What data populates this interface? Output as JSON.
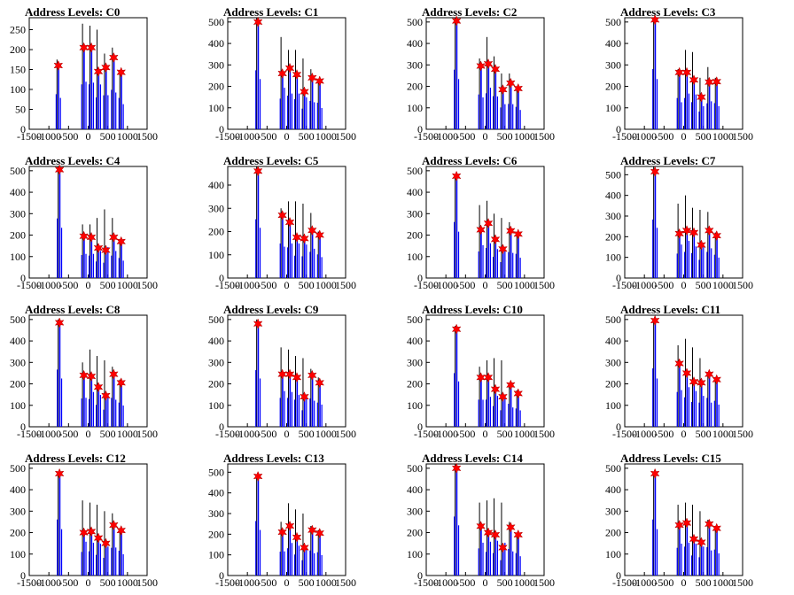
{
  "colors": {
    "bar": "#0000ff",
    "spike": "#000000",
    "marker": "#ff0000",
    "frame": "#000000"
  },
  "marker_icon": "star-marker-icon",
  "x_ticks": [
    -1500,
    -1000,
    -500,
    0,
    500,
    1000,
    1500
  ],
  "chart_data": [
    {
      "type": "bar",
      "title": "Address Levels: C0",
      "xlim": [
        -1500,
        1500
      ],
      "ylim": [
        0,
        280
      ],
      "yticks": [
        0,
        50,
        100,
        150,
        200,
        250
      ],
      "peaks": [
        {
          "x": -760,
          "h": 175,
          "marker": 160
        },
        {
          "x": -110,
          "h": 265,
          "marker": 205
        },
        {
          "x": 80,
          "h": 260,
          "marker": 205
        },
        {
          "x": 260,
          "h": 250,
          "marker": 145
        },
        {
          "x": 450,
          "h": 190,
          "marker": 155
        },
        {
          "x": 650,
          "h": 205,
          "marker": 180
        },
        {
          "x": 840,
          "h": 140,
          "marker": 143
        }
      ]
    },
    {
      "type": "bar",
      "title": "Address Levels: C1",
      "xlim": [
        -1500,
        1500
      ],
      "ylim": [
        0,
        520
      ],
      "yticks": [
        0,
        100,
        200,
        300,
        400,
        500
      ],
      "peaks": [
        {
          "x": -730,
          "h": 520,
          "marker": 500
        },
        {
          "x": -110,
          "h": 430,
          "marker": 260
        },
        {
          "x": 80,
          "h": 370,
          "marker": 285
        },
        {
          "x": 260,
          "h": 370,
          "marker": 255
        },
        {
          "x": 450,
          "h": 330,
          "marker": 175
        },
        {
          "x": 650,
          "h": 280,
          "marker": 240
        },
        {
          "x": 840,
          "h": 220,
          "marker": 225
        }
      ]
    },
    {
      "type": "bar",
      "title": "Address Levels: C2",
      "xlim": [
        -1500,
        1500
      ],
      "ylim": [
        0,
        520
      ],
      "yticks": [
        0,
        100,
        200,
        300,
        400,
        500
      ],
      "peaks": [
        {
          "x": -730,
          "h": 520,
          "marker": 505
        },
        {
          "x": -110,
          "h": 330,
          "marker": 295
        },
        {
          "x": 80,
          "h": 430,
          "marker": 305
        },
        {
          "x": 260,
          "h": 340,
          "marker": 280
        },
        {
          "x": 450,
          "h": 260,
          "marker": 185
        },
        {
          "x": 650,
          "h": 260,
          "marker": 215
        },
        {
          "x": 840,
          "h": 200,
          "marker": 190
        }
      ]
    },
    {
      "type": "bar",
      "title": "Address Levels: C3",
      "xlim": [
        -1500,
        1500
      ],
      "ylim": [
        0,
        520
      ],
      "yticks": [
        0,
        100,
        200,
        300,
        400,
        500
      ],
      "peaks": [
        {
          "x": -730,
          "h": 520,
          "marker": 510
        },
        {
          "x": -110,
          "h": 280,
          "marker": 265
        },
        {
          "x": 80,
          "h": 370,
          "marker": 265
        },
        {
          "x": 260,
          "h": 360,
          "marker": 230
        },
        {
          "x": 450,
          "h": 240,
          "marker": 150
        },
        {
          "x": 650,
          "h": 290,
          "marker": 220
        },
        {
          "x": 840,
          "h": 240,
          "marker": 222
        }
      ]
    },
    {
      "type": "bar",
      "title": "Address Levels: C4",
      "xlim": [
        -1500,
        1500
      ],
      "ylim": [
        0,
        520
      ],
      "yticks": [
        0,
        100,
        200,
        300,
        400,
        500
      ],
      "peaks": [
        {
          "x": -730,
          "h": 520,
          "marker": 505
        },
        {
          "x": -110,
          "h": 250,
          "marker": 195
        },
        {
          "x": 80,
          "h": 250,
          "marker": 190
        },
        {
          "x": 260,
          "h": 280,
          "marker": 140
        },
        {
          "x": 450,
          "h": 320,
          "marker": 130
        },
        {
          "x": 650,
          "h": 280,
          "marker": 190
        },
        {
          "x": 840,
          "h": 180,
          "marker": 170
        }
      ]
    },
    {
      "type": "bar",
      "title": "Address Levels: C5",
      "xlim": [
        -1500,
        1500
      ],
      "ylim": [
        0,
        480
      ],
      "yticks": [
        0,
        100,
        200,
        300,
        400
      ],
      "peaks": [
        {
          "x": -730,
          "h": 480,
          "marker": 460
        },
        {
          "x": -110,
          "h": 300,
          "marker": 270
        },
        {
          "x": 80,
          "h": 330,
          "marker": 240
        },
        {
          "x": 260,
          "h": 330,
          "marker": 175
        },
        {
          "x": 450,
          "h": 320,
          "marker": 170
        },
        {
          "x": 650,
          "h": 280,
          "marker": 205
        },
        {
          "x": 840,
          "h": 200,
          "marker": 185
        }
      ]
    },
    {
      "type": "bar",
      "title": "Address Levels: C6",
      "xlim": [
        -1500,
        1500
      ],
      "ylim": [
        0,
        520
      ],
      "yticks": [
        0,
        100,
        200,
        300,
        400,
        500
      ],
      "peaks": [
        {
          "x": -730,
          "h": 480,
          "marker": 475
        },
        {
          "x": -110,
          "h": 340,
          "marker": 225
        },
        {
          "x": 80,
          "h": 360,
          "marker": 255
        },
        {
          "x": 260,
          "h": 300,
          "marker": 180
        },
        {
          "x": 450,
          "h": 280,
          "marker": 135
        },
        {
          "x": 650,
          "h": 260,
          "marker": 220
        },
        {
          "x": 840,
          "h": 210,
          "marker": 205
        }
      ]
    },
    {
      "type": "bar",
      "title": "Address Levels: C7",
      "xlim": [
        -1500,
        1500
      ],
      "ylim": [
        0,
        540
      ],
      "yticks": [
        0,
        100,
        200,
        300,
        400,
        500
      ],
      "peaks": [
        {
          "x": -730,
          "h": 540,
          "marker": 515
        },
        {
          "x": -110,
          "h": 360,
          "marker": 215
        },
        {
          "x": 80,
          "h": 400,
          "marker": 230
        },
        {
          "x": 260,
          "h": 340,
          "marker": 220
        },
        {
          "x": 450,
          "h": 330,
          "marker": 160
        },
        {
          "x": 650,
          "h": 320,
          "marker": 230
        },
        {
          "x": 840,
          "h": 220,
          "marker": 205
        }
      ]
    },
    {
      "type": "bar",
      "title": "Address Levels: C8",
      "xlim": [
        -1500,
        1500
      ],
      "ylim": [
        0,
        520
      ],
      "yticks": [
        0,
        100,
        200,
        300,
        400,
        500
      ],
      "peaks": [
        {
          "x": -730,
          "h": 500,
          "marker": 485
        },
        {
          "x": -110,
          "h": 300,
          "marker": 240
        },
        {
          "x": 80,
          "h": 360,
          "marker": 235
        },
        {
          "x": 260,
          "h": 330,
          "marker": 185
        },
        {
          "x": 450,
          "h": 310,
          "marker": 145
        },
        {
          "x": 650,
          "h": 280,
          "marker": 245
        },
        {
          "x": 840,
          "h": 220,
          "marker": 205
        }
      ]
    },
    {
      "type": "bar",
      "title": "Address Levels: C9",
      "xlim": [
        -1500,
        1500
      ],
      "ylim": [
        0,
        520
      ],
      "yticks": [
        0,
        100,
        200,
        300,
        400,
        500
      ],
      "peaks": [
        {
          "x": -730,
          "h": 500,
          "marker": 480
        },
        {
          "x": -110,
          "h": 370,
          "marker": 245
        },
        {
          "x": 80,
          "h": 360,
          "marker": 245
        },
        {
          "x": 260,
          "h": 330,
          "marker": 230
        },
        {
          "x": 450,
          "h": 320,
          "marker": 140
        },
        {
          "x": 650,
          "h": 270,
          "marker": 240
        },
        {
          "x": 840,
          "h": 230,
          "marker": 205
        }
      ]
    },
    {
      "type": "bar",
      "title": "Address Levels: C10",
      "xlim": [
        -1500,
        1500
      ],
      "ylim": [
        0,
        520
      ],
      "yticks": [
        0,
        100,
        200,
        300,
        400,
        500
      ],
      "peaks": [
        {
          "x": -730,
          "h": 470,
          "marker": 455
        },
        {
          "x": -110,
          "h": 280,
          "marker": 230
        },
        {
          "x": 80,
          "h": 310,
          "marker": 230
        },
        {
          "x": 260,
          "h": 320,
          "marker": 175
        },
        {
          "x": 450,
          "h": 310,
          "marker": 140
        },
        {
          "x": 650,
          "h": 200,
          "marker": 195
        },
        {
          "x": 840,
          "h": 170,
          "marker": 155
        }
      ]
    },
    {
      "type": "bar",
      "title": "Address Levels: C11",
      "xlim": [
        -1500,
        1500
      ],
      "ylim": [
        0,
        520
      ],
      "yticks": [
        0,
        100,
        200,
        300,
        400,
        500
      ],
      "peaks": [
        {
          "x": -730,
          "h": 500,
          "marker": 495
        },
        {
          "x": -110,
          "h": 380,
          "marker": 295
        },
        {
          "x": 80,
          "h": 410,
          "marker": 250
        },
        {
          "x": 260,
          "h": 370,
          "marker": 210
        },
        {
          "x": 450,
          "h": 320,
          "marker": 205
        },
        {
          "x": 650,
          "h": 250,
          "marker": 245
        },
        {
          "x": 840,
          "h": 230,
          "marker": 220
        }
      ]
    },
    {
      "type": "bar",
      "title": "Address Levels: C12",
      "xlim": [
        -1500,
        1500
      ],
      "ylim": [
        0,
        520
      ],
      "yticks": [
        0,
        100,
        200,
        300,
        400,
        500
      ],
      "peaks": [
        {
          "x": -730,
          "h": 480,
          "marker": 475
        },
        {
          "x": -110,
          "h": 350,
          "marker": 200
        },
        {
          "x": 80,
          "h": 340,
          "marker": 205
        },
        {
          "x": 260,
          "h": 330,
          "marker": 175
        },
        {
          "x": 450,
          "h": 300,
          "marker": 150
        },
        {
          "x": 650,
          "h": 290,
          "marker": 235
        },
        {
          "x": 840,
          "h": 220,
          "marker": 210
        }
      ]
    },
    {
      "type": "bar",
      "title": "Address Levels: C13",
      "xlim": [
        -1500,
        1500
      ],
      "ylim": [
        0,
        540
      ],
      "yticks": [
        0,
        100,
        200,
        300,
        400,
        500
      ],
      "peaks": [
        {
          "x": -730,
          "h": 490,
          "marker": 480
        },
        {
          "x": -110,
          "h": 260,
          "marker": 210
        },
        {
          "x": 80,
          "h": 350,
          "marker": 240
        },
        {
          "x": 260,
          "h": 320,
          "marker": 185
        },
        {
          "x": 450,
          "h": 300,
          "marker": 135
        },
        {
          "x": 650,
          "h": 240,
          "marker": 220
        },
        {
          "x": 840,
          "h": 220,
          "marker": 205
        }
      ]
    },
    {
      "type": "bar",
      "title": "Address Levels: C14",
      "xlim": [
        -1500,
        1500
      ],
      "ylim": [
        0,
        520
      ],
      "yticks": [
        0,
        100,
        200,
        300,
        400,
        500
      ],
      "peaks": [
        {
          "x": -730,
          "h": 520,
          "marker": 500
        },
        {
          "x": -110,
          "h": 340,
          "marker": 230
        },
        {
          "x": 80,
          "h": 350,
          "marker": 200
        },
        {
          "x": 260,
          "h": 360,
          "marker": 190
        },
        {
          "x": 450,
          "h": 340,
          "marker": 130
        },
        {
          "x": 650,
          "h": 250,
          "marker": 225
        },
        {
          "x": 840,
          "h": 200,
          "marker": 190
        }
      ]
    },
    {
      "type": "bar",
      "title": "Address Levels: C15",
      "xlim": [
        -1500,
        1500
      ],
      "ylim": [
        0,
        520
      ],
      "yticks": [
        0,
        100,
        200,
        300,
        400,
        500
      ],
      "peaks": [
        {
          "x": -730,
          "h": 480,
          "marker": 475
        },
        {
          "x": -110,
          "h": 330,
          "marker": 235
        },
        {
          "x": 80,
          "h": 340,
          "marker": 245
        },
        {
          "x": 260,
          "h": 330,
          "marker": 170
        },
        {
          "x": 450,
          "h": 300,
          "marker": 155
        },
        {
          "x": 650,
          "h": 260,
          "marker": 240
        },
        {
          "x": 840,
          "h": 230,
          "marker": 220
        }
      ]
    }
  ]
}
